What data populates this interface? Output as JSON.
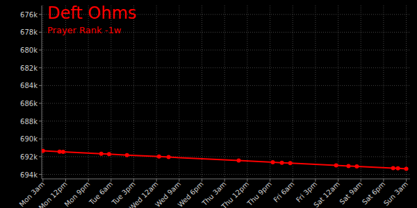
{
  "chart_data": {
    "type": "line",
    "title": "Deft Ohms",
    "subtitle": "Prayer Rank -1w",
    "x": [
      3,
      9.6,
      11,
      26.1,
      29.2,
      36.3,
      49,
      52.8,
      80.6,
      94.1,
      97.7,
      101,
      119.2,
      124.1,
      127.4,
      141.8,
      143.7,
      147
    ],
    "values": [
      691350,
      691440,
      691460,
      691670,
      691720,
      691820,
      691990,
      692050,
      692440,
      692620,
      692680,
      692720,
      692980,
      693050,
      693090,
      693290,
      693320,
      693370
    ],
    "color": "#ff0000",
    "marker": "circle",
    "grid": true,
    "xlim": [
      2.5,
      148.5
    ],
    "xticks": [
      {
        "value": 3,
        "label": "Mon 3am"
      },
      {
        "value": 12,
        "label": "Mon 12pm"
      },
      {
        "value": 21,
        "label": "Mon 9pm"
      },
      {
        "value": 30,
        "label": "Tue 6am"
      },
      {
        "value": 39,
        "label": "Tue 3pm"
      },
      {
        "value": 48,
        "label": "Wed 12am"
      },
      {
        "value": 57,
        "label": "Wed 9am"
      },
      {
        "value": 66,
        "label": "Wed 6pm"
      },
      {
        "value": 75,
        "label": "Thu 3am"
      },
      {
        "value": 84,
        "label": "Thu 12pm"
      },
      {
        "value": 93,
        "label": "Thu 9pm"
      },
      {
        "value": 102,
        "label": "Fri 6am"
      },
      {
        "value": 111,
        "label": "Fri 3pm"
      },
      {
        "value": 120,
        "label": "Sat 12am"
      },
      {
        "value": 129,
        "label": "Sat 9am"
      },
      {
        "value": 138,
        "label": "Sat 6pm"
      },
      {
        "value": 147,
        "label": "Sun 3am"
      }
    ],
    "ylim": [
      694500,
      675000
    ],
    "yticks": [
      {
        "value": 676000,
        "label": "676k"
      },
      {
        "value": 678000,
        "label": "678k"
      },
      {
        "value": 680000,
        "label": "680k"
      },
      {
        "value": 682000,
        "label": "682k"
      },
      {
        "value": 684000,
        "label": "684k"
      },
      {
        "value": 686000,
        "label": "686k"
      },
      {
        "value": 688000,
        "label": "688k"
      },
      {
        "value": 690000,
        "label": "690k"
      },
      {
        "value": 692000,
        "label": "692k"
      },
      {
        "value": 694000,
        "label": "694k"
      }
    ]
  }
}
